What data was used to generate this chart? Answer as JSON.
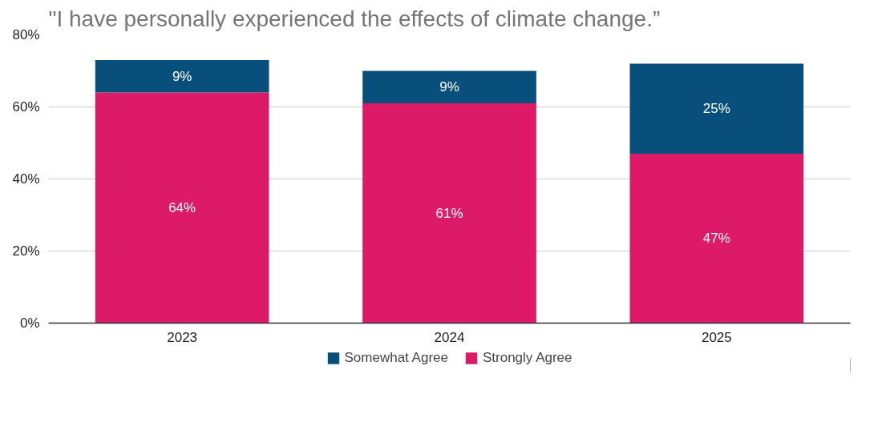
{
  "chart_data": {
    "type": "bar",
    "title": "\"I have personally experienced the effects of climate change.”",
    "categories": [
      "2023",
      "2024",
      "2025"
    ],
    "stacked": true,
    "series": [
      {
        "name": "Strongly Agree",
        "color": "#dc1a68",
        "values": [
          64,
          61,
          47
        ],
        "value_labels": [
          "64%",
          "61%",
          "47%"
        ]
      },
      {
        "name": "Somewhat Agree",
        "color": "#084f7c",
        "values": [
          9,
          9,
          25
        ],
        "value_labels": [
          "9%",
          "9%",
          "25%"
        ]
      }
    ],
    "ylim": [
      0,
      80
    ],
    "yticks": [
      {
        "value": 0,
        "label": "0%"
      },
      {
        "value": 20,
        "label": "20%"
      },
      {
        "value": 40,
        "label": "40%"
      },
      {
        "value": 60,
        "label": "60%"
      },
      {
        "value": 80,
        "label": "80%"
      }
    ],
    "grid": "y",
    "legend": "bottom"
  }
}
